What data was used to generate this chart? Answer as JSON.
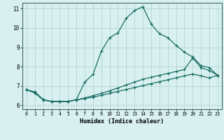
{
  "xlabel": "Humidex (Indice chaleur)",
  "bg_color": "#d8f0f0",
  "grid_color": "#b8d8d8",
  "line_color": "#1a6e64",
  "xlim": [
    -0.5,
    23.5
  ],
  "ylim": [
    5.8,
    11.3
  ],
  "xticks": [
    0,
    1,
    2,
    3,
    4,
    5,
    6,
    7,
    8,
    9,
    10,
    11,
    12,
    13,
    14,
    15,
    16,
    17,
    18,
    19,
    20,
    21,
    22,
    23
  ],
  "yticks": [
    6,
    7,
    8,
    9,
    10,
    11
  ],
  "series1_x": [
    0,
    1,
    2,
    3,
    4,
    5,
    6,
    7,
    8,
    9,
    10,
    11,
    12,
    13,
    14,
    15,
    16,
    17,
    18,
    19,
    20,
    21,
    22,
    23
  ],
  "series1_y": [
    6.8,
    6.7,
    6.3,
    6.2,
    6.2,
    6.2,
    6.3,
    7.2,
    7.6,
    8.8,
    9.5,
    9.75,
    10.5,
    10.9,
    11.1,
    10.2,
    9.7,
    9.5,
    9.1,
    8.75,
    8.5,
    8.05,
    7.95,
    7.55
  ],
  "series2_x": [
    0,
    1,
    2,
    3,
    4,
    5,
    6,
    7,
    8,
    9,
    10,
    11,
    12,
    13,
    14,
    15,
    16,
    17,
    18,
    19,
    20,
    21,
    22,
    23
  ],
  "series2_y": [
    6.8,
    6.65,
    6.28,
    6.2,
    6.2,
    6.2,
    6.28,
    6.38,
    6.5,
    6.62,
    6.75,
    6.9,
    7.05,
    7.2,
    7.35,
    7.45,
    7.55,
    7.65,
    7.75,
    7.85,
    8.45,
    7.95,
    7.8,
    7.55
  ],
  "series3_x": [
    0,
    1,
    2,
    3,
    4,
    5,
    6,
    7,
    8,
    9,
    10,
    11,
    12,
    13,
    14,
    15,
    16,
    17,
    18,
    19,
    20,
    21,
    22,
    23
  ],
  "series3_y": [
    6.8,
    6.65,
    6.28,
    6.2,
    6.2,
    6.2,
    6.28,
    6.35,
    6.42,
    6.52,
    6.62,
    6.72,
    6.82,
    6.92,
    7.02,
    7.12,
    7.22,
    7.32,
    7.42,
    7.52,
    7.62,
    7.52,
    7.42,
    7.55
  ]
}
